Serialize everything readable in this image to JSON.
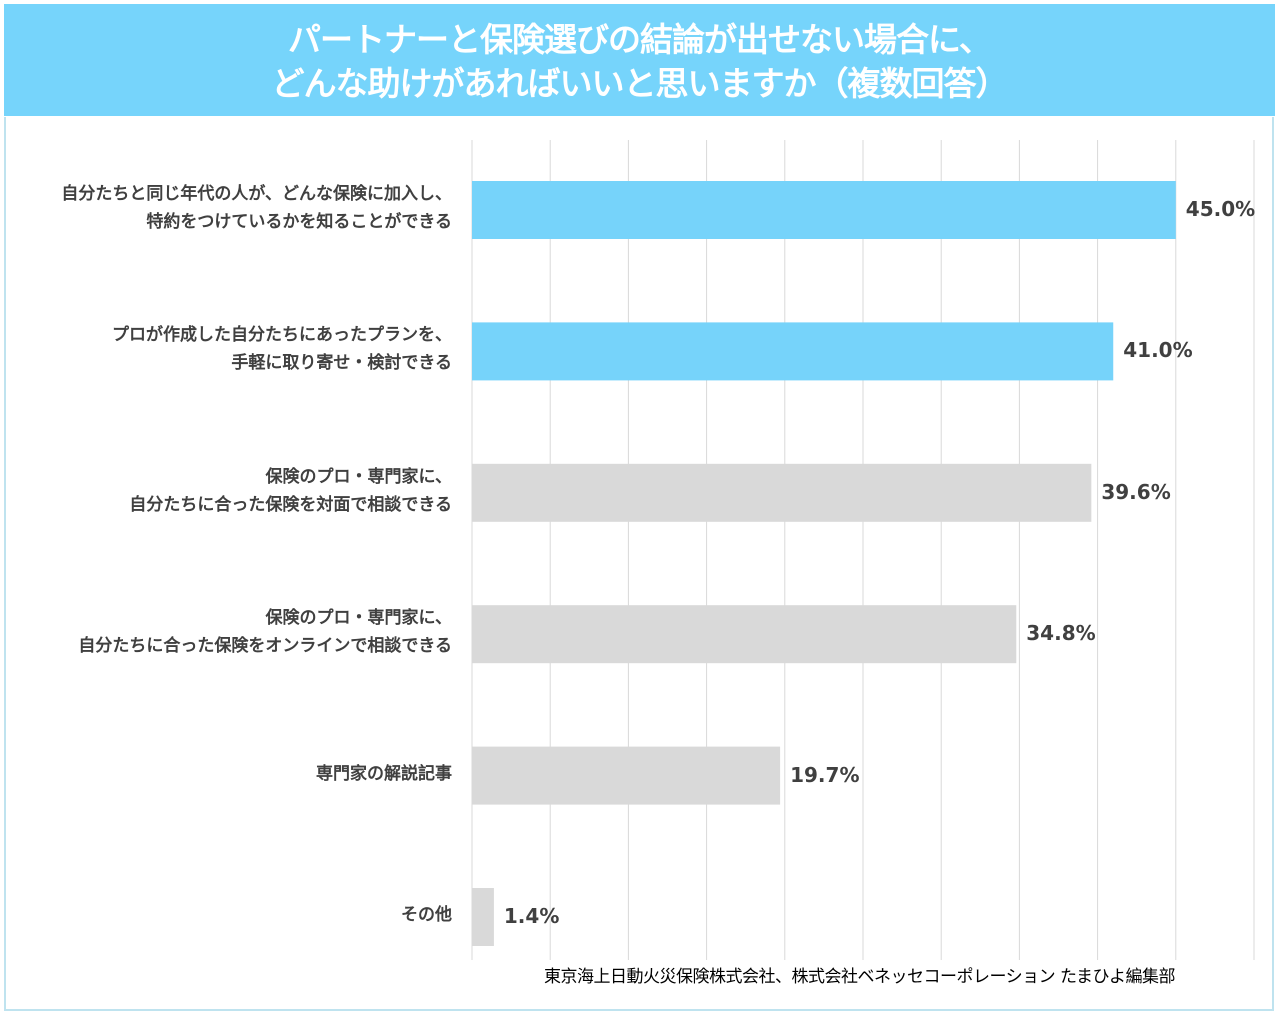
{
  "title": {
    "line1": "パートナーと保険選びの結論が出せない場合に、",
    "line2": "どんな助けがあればいいと思いますか（複数回答）"
  },
  "source": "東京海上日動火災保険株式会社、株式会社ベネッセコーポレーション たまひよ編集部",
  "colors": {
    "header": "#76d4fb",
    "highlight": "#76d3fa",
    "default": "#d9d9d9",
    "grid": "#d9d9d9"
  },
  "chart_data": {
    "type": "bar",
    "orientation": "horizontal",
    "title": "パートナーと保険選びの結論が出せない場合に、どんな助けがあればいいと思いますか（複数回答）",
    "categories": [
      [
        "自分たちと同じ年代の人が、どんな保険に加入し、",
        "特約をつけているかを知ることができる"
      ],
      [
        "プロが作成した自分たちにあったプランを、",
        "手軽に取り寄せ・検討できる"
      ],
      [
        "保険のプロ・専門家に、",
        "自分たちに合った保険を対面で相談できる"
      ],
      [
        "保険のプロ・専門家に、",
        "自分たちに合った保険をオンラインで相談できる"
      ],
      [
        "専門家の解説記事"
      ],
      [
        "その他"
      ]
    ],
    "values": [
      45.0,
      41.0,
      39.6,
      34.8,
      19.7,
      1.4
    ],
    "value_labels": [
      "45.0%",
      "41.0%",
      "39.6%",
      "34.8%",
      "19.7%",
      "1.4%"
    ],
    "highlighted": [
      true,
      true,
      false,
      false,
      false,
      false
    ],
    "xlim": [
      0,
      50
    ],
    "grid_step": 5,
    "grid": true,
    "xlabel": "",
    "ylabel": ""
  }
}
